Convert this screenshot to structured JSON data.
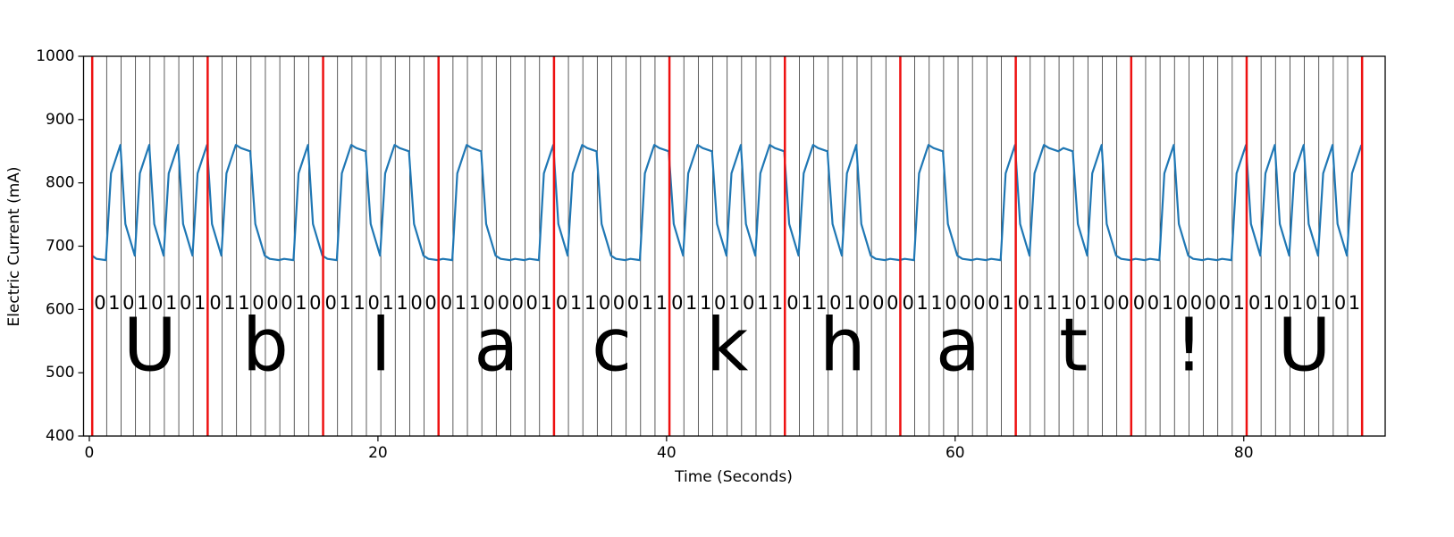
{
  "chart_data": {
    "type": "line",
    "xlabel": "Time (Seconds)",
    "ylabel": "Electric Current (mA)",
    "xlim": [
      -0.4,
      89.8
    ],
    "ylim": [
      400,
      1000
    ],
    "xticks": [
      0,
      20,
      40,
      60,
      80
    ],
    "yticks": [
      400,
      500,
      600,
      700,
      800,
      900,
      1000
    ],
    "bit_line_color": "#333333",
    "byte_line_color": "#ee1111",
    "bit_lines": [
      0.2,
      1.2,
      2.2,
      3.2,
      4.2,
      5.2,
      6.2,
      7.2,
      8.2,
      9.2,
      10.2,
      11.2,
      12.2,
      13.2,
      14.2,
      15.2,
      16.2,
      17.2,
      18.2,
      19.2,
      20.2,
      21.2,
      22.2,
      23.2,
      24.2,
      25.2,
      26.2,
      27.2,
      28.2,
      29.2,
      30.2,
      31.2,
      32.2,
      33.2,
      34.2,
      35.2,
      36.2,
      37.2,
      38.2,
      39.2,
      40.2,
      41.2,
      42.2,
      43.2,
      44.2,
      45.2,
      46.2,
      47.2,
      48.2,
      49.2,
      50.2,
      51.2,
      52.2,
      53.2,
      54.2,
      55.2,
      56.2,
      57.2,
      58.2,
      59.2,
      60.2,
      61.2,
      62.2,
      63.2,
      64.2,
      65.2,
      66.2,
      67.2,
      68.2,
      69.2,
      70.2,
      71.2,
      72.2,
      73.2,
      74.2,
      75.2,
      76.2,
      77.2,
      78.2,
      79.2,
      80.2,
      81.2,
      82.2,
      83.2,
      84.2,
      85.2,
      86.2,
      87.2,
      88.2
    ],
    "byte_lines": [
      0.2,
      8.2,
      16.2,
      24.2,
      32.2,
      40.2,
      48.2,
      56.2,
      64.2,
      72.2,
      80.2,
      88.2
    ],
    "bit_labels": [
      "01010101",
      "01100010",
      "01101100",
      "01100001",
      "01100011",
      "01101011",
      "01101000",
      "01100001",
      "01110100",
      "00100001",
      "01010101"
    ],
    "char_labels": [
      "U",
      "b",
      "l",
      "a",
      "c",
      "k",
      "h",
      "a",
      "t",
      "!",
      "U"
    ],
    "x": [
      0.2,
      0.5,
      1.15,
      1.5,
      2.15,
      2.5,
      3.15,
      3.5,
      4.15,
      4.5,
      5.15,
      5.5,
      6.15,
      6.5,
      7.15,
      7.5,
      8.15,
      8.5,
      9.15,
      9.5,
      10.15,
      10.5,
      11.15,
      11.5,
      12.15,
      12.5,
      13.15,
      13.5,
      14.15,
      14.5,
      15.15,
      15.5,
      16.15,
      16.5,
      17.15,
      17.5,
      18.15,
      18.5,
      19.15,
      19.5,
      20.15,
      20.5,
      21.15,
      21.5,
      22.15,
      22.5,
      23.15,
      23.5,
      24.15,
      24.5,
      25.15,
      25.5,
      26.15,
      26.5,
      27.15,
      27.5,
      28.15,
      28.5,
      29.15,
      29.5,
      30.15,
      30.5,
      31.15,
      31.5,
      32.15,
      32.5,
      33.15,
      33.5,
      34.15,
      34.5,
      35.15,
      35.5,
      36.15,
      36.5,
      37.15,
      37.5,
      38.15,
      38.5,
      39.15,
      39.5,
      40.15,
      40.5,
      41.15,
      41.5,
      42.15,
      42.5,
      43.15,
      43.5,
      44.15,
      44.5,
      45.15,
      45.5,
      46.15,
      46.5,
      47.15,
      47.5,
      48.15,
      48.5,
      49.15,
      49.5,
      50.15,
      50.5,
      51.15,
      51.5,
      52.15,
      52.5,
      53.15,
      53.5,
      54.15,
      54.5,
      55.15,
      55.5,
      56.15,
      56.5,
      57.15,
      57.5,
      58.15,
      58.5,
      59.15,
      59.5,
      60.15,
      60.5,
      61.15,
      61.5,
      62.15,
      62.5,
      63.15,
      63.5,
      64.15,
      64.5,
      65.15,
      65.5,
      66.15,
      66.5,
      67.15,
      67.5,
      68.15,
      68.5,
      69.15,
      69.5,
      70.15,
      70.5,
      71.15,
      71.5,
      72.15,
      72.5,
      73.15,
      73.5,
      74.15,
      74.5,
      75.15,
      75.5,
      76.15,
      76.5,
      77.15,
      77.5,
      78.15,
      78.5,
      79.15,
      79.5,
      80.15,
      80.5,
      81.15,
      81.5,
      82.15,
      82.5,
      83.15,
      83.5,
      84.15,
      84.5,
      85.15,
      85.5,
      86.15,
      86.5,
      87.15,
      87.5,
      88.15
    ],
    "series": [
      {
        "color": "#1f77b4",
        "values": [
          685,
          680,
          678,
          815,
          860,
          735,
          685,
          815,
          860,
          735,
          685,
          815,
          860,
          735,
          685,
          815,
          860,
          735,
          685,
          815,
          860,
          855,
          850,
          735,
          685,
          680,
          678,
          680,
          678,
          815,
          860,
          735,
          685,
          680,
          678,
          815,
          860,
          855,
          850,
          735,
          685,
          815,
          860,
          855,
          850,
          735,
          685,
          680,
          678,
          680,
          678,
          815,
          860,
          855,
          850,
          735,
          685,
          680,
          678,
          680,
          678,
          680,
          678,
          815,
          860,
          735,
          685,
          815,
          860,
          855,
          850,
          735,
          685,
          680,
          678,
          680,
          678,
          815,
          860,
          855,
          850,
          735,
          685,
          815,
          860,
          855,
          850,
          735,
          685,
          815,
          860,
          735,
          685,
          815,
          860,
          855,
          850,
          735,
          685,
          815,
          860,
          855,
          850,
          735,
          685,
          815,
          860,
          735,
          685,
          680,
          678,
          680,
          678,
          680,
          678,
          815,
          860,
          855,
          850,
          735,
          685,
          680,
          678,
          680,
          678,
          680,
          678,
          815,
          860,
          735,
          685,
          815,
          860,
          855,
          850,
          855,
          850,
          735,
          685,
          815,
          860,
          735,
          685,
          680,
          678,
          680,
          678,
          680,
          678,
          815,
          860,
          735,
          685,
          680,
          678,
          680,
          678,
          680,
          678,
          815,
          860,
          735,
          685,
          815,
          860,
          735,
          685,
          815,
          860,
          735,
          685,
          815,
          860,
          735,
          685,
          815,
          860
        ]
      }
    ]
  }
}
